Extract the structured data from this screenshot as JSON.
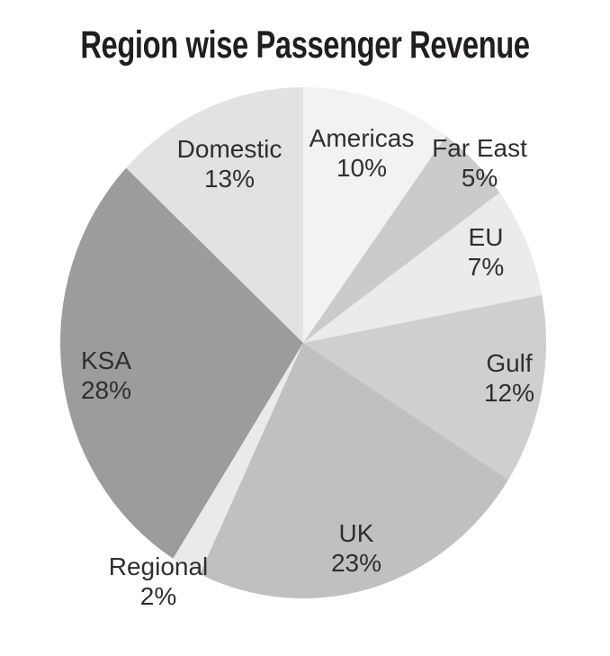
{
  "title": "Region wise Passenger Revenue",
  "colors": {
    "background": "#ffffff",
    "title_text": "#221e1f",
    "label_text": "#2f2f2f"
  },
  "chart_data": {
    "type": "pie",
    "title": "Region wise Passenger Revenue",
    "direction": "clockwise",
    "start_angle_deg": 0,
    "legend_position": "none",
    "palette": "grayscale",
    "label_format": "name above percent, placed on or just outside each slice",
    "categories": [
      "Americas",
      "Far East",
      "EU",
      "Gulf",
      "UK",
      "Regional",
      "KSA",
      "Domestic"
    ],
    "values": [
      10,
      5,
      7,
      12,
      23,
      2,
      28,
      13
    ],
    "slices": [
      {
        "label": "Americas",
        "value_pct": 10,
        "pct_text": "10%",
        "color": "#f2f2f2"
      },
      {
        "label": "Far East",
        "value_pct": 5,
        "pct_text": "5%",
        "color": "#cbcbcb"
      },
      {
        "label": "EU",
        "value_pct": 7,
        "pct_text": "7%",
        "color": "#ebebeb"
      },
      {
        "label": "Gulf",
        "value_pct": 12,
        "pct_text": "12%",
        "color": "#cfcfcf"
      },
      {
        "label": "UK",
        "value_pct": 23,
        "pct_text": "23%",
        "color": "#c0c0c0"
      },
      {
        "label": "Regional",
        "value_pct": 2,
        "pct_text": "2%",
        "color": "#eaeaea"
      },
      {
        "label": "KSA",
        "value_pct": 28,
        "pct_text": "28%",
        "color": "#9c9c9c"
      },
      {
        "label": "Domestic",
        "value_pct": 13,
        "pct_text": "13%",
        "color": "#e2e2e2"
      }
    ]
  }
}
